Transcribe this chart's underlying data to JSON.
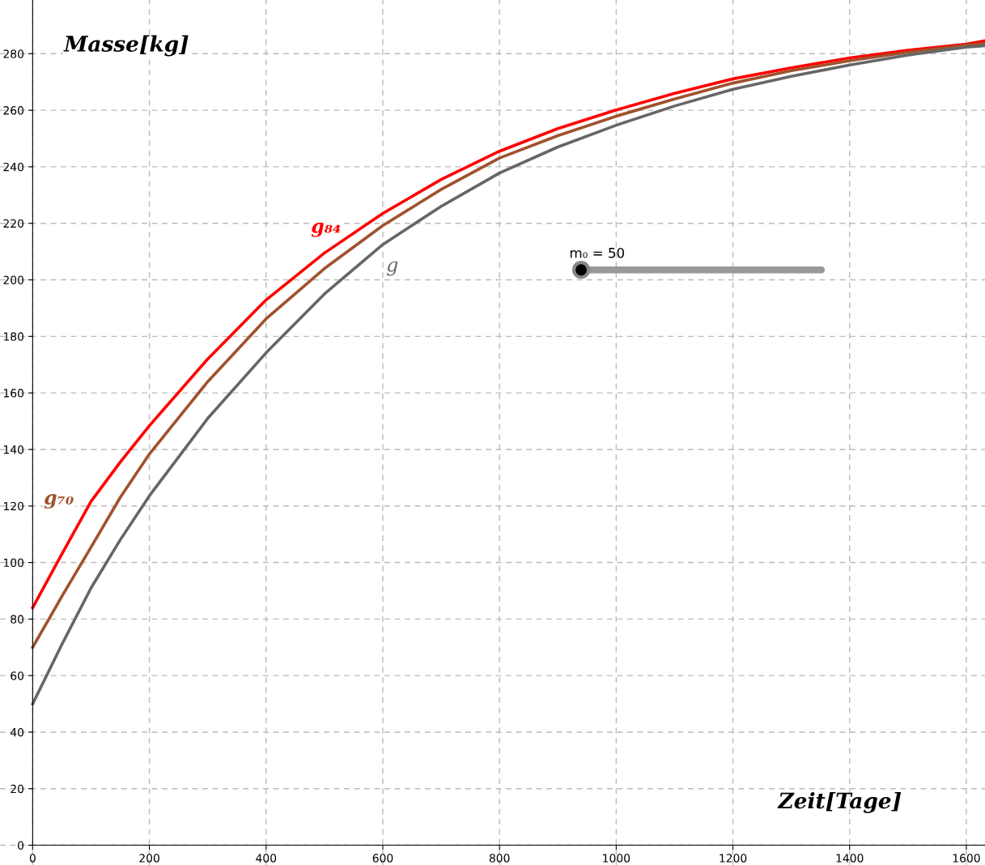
{
  "chart_data": {
    "type": "line",
    "xlabel": "Zeit[Tage]",
    "ylabel": "Masse[kg]",
    "x": [
      0,
      50,
      100,
      150,
      200,
      300,
      400,
      500,
      600,
      700,
      800,
      900,
      1000,
      1100,
      1200,
      1300,
      1400,
      1500,
      1600,
      1630
    ],
    "series": [
      {
        "name": "g₈₄",
        "color": "#ff0000",
        "values": [
          84,
          103,
          121.6,
          135.5,
          148.4,
          172,
          192.9,
          209.5,
          223.5,
          235.5,
          245.5,
          253.5,
          260.1,
          266,
          271.1,
          275,
          278.5,
          281.2,
          283.4,
          284.5
        ]
      },
      {
        "name": "g₇₀",
        "color": "#a0522d",
        "values": [
          70,
          88,
          105.4,
          123,
          138.4,
          164,
          186.2,
          204,
          219.2,
          232,
          243.1,
          251,
          257.9,
          264,
          269.6,
          274,
          277.5,
          280.5,
          283,
          283.6
        ]
      },
      {
        "name": "g",
        "color": "#666666",
        "values": [
          50,
          71,
          91,
          108,
          123.6,
          151,
          174.2,
          195,
          212.5,
          226,
          237.8,
          247,
          254.7,
          261.5,
          267.4,
          272,
          276,
          279.5,
          282.3,
          282.8
        ]
      }
    ],
    "xlim": [
      -56,
      1632
    ],
    "ylim": [
      -7,
      299
    ],
    "xticks": [
      0,
      200,
      400,
      600,
      800,
      1000,
      1200,
      1400,
      1600
    ],
    "yticks": [
      0,
      20,
      40,
      60,
      80,
      100,
      120,
      140,
      160,
      180,
      200,
      220,
      240,
      260,
      280
    ],
    "grid": true,
    "legend": false,
    "marker": "none",
    "line_style": "solid",
    "annotations": [
      "m₀ = 50"
    ]
  }
}
